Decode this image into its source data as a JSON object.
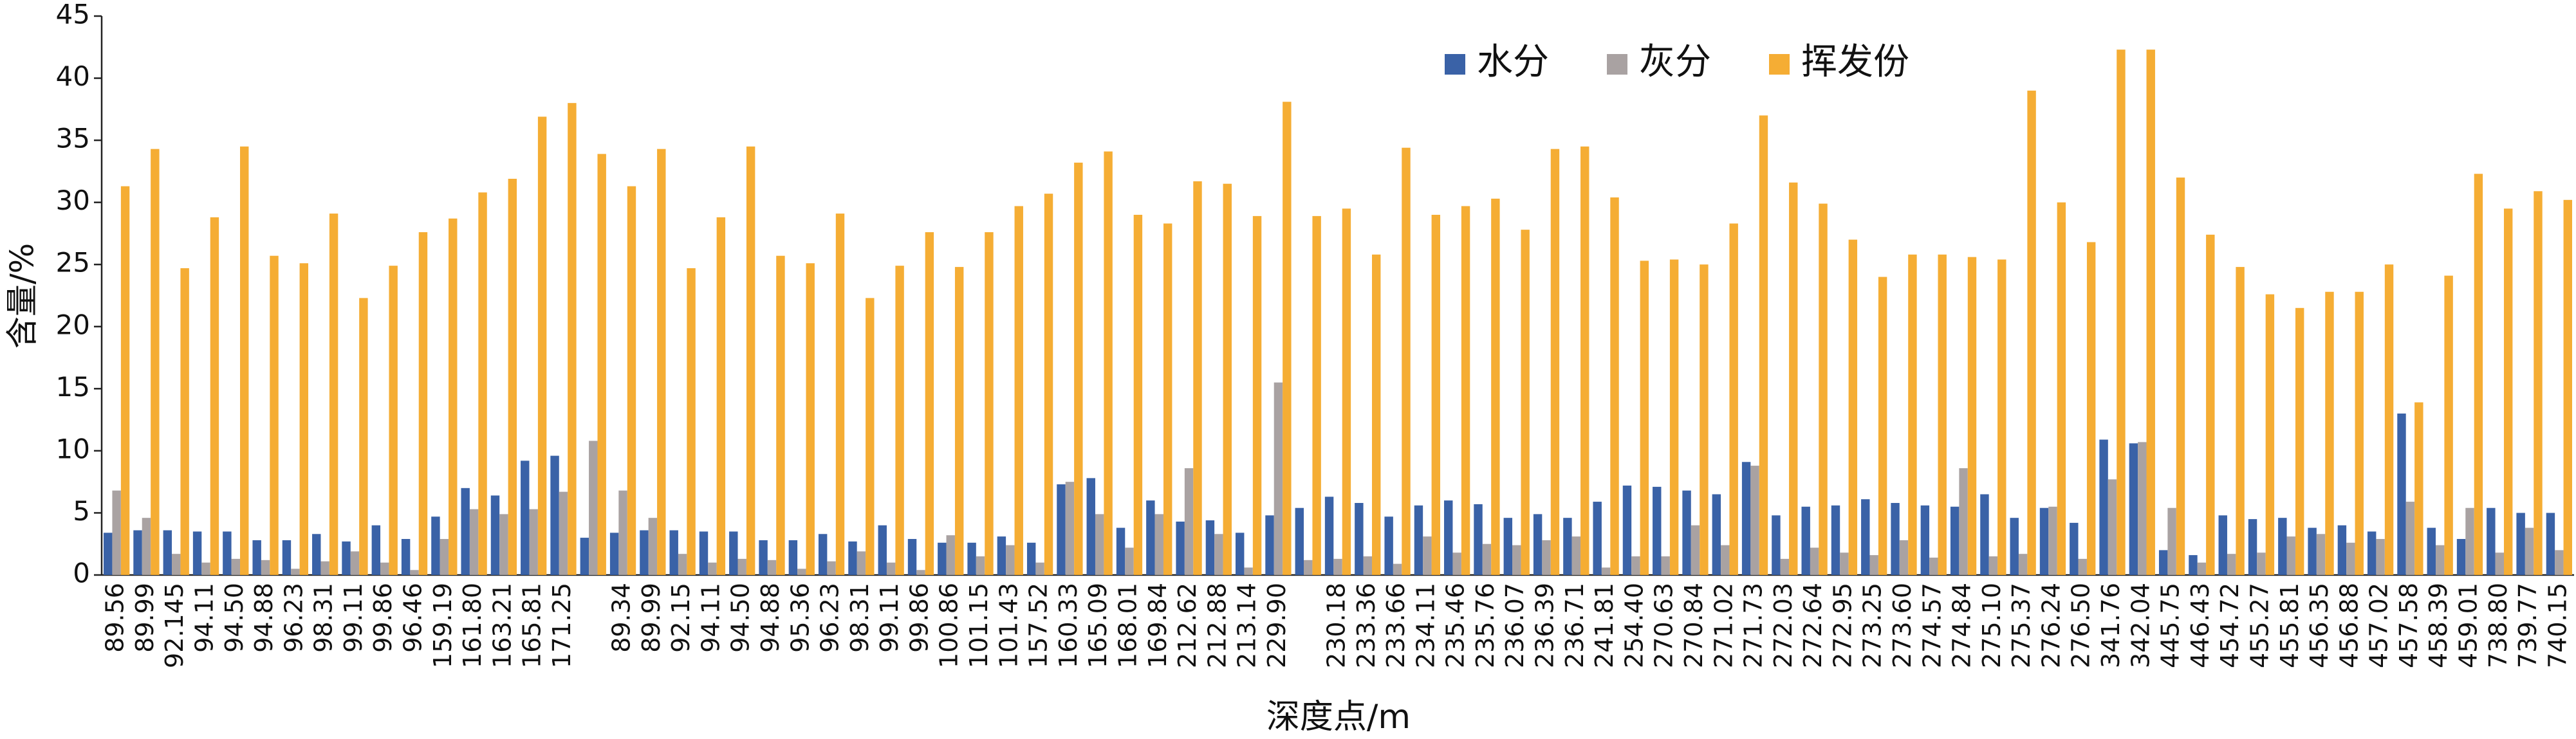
{
  "chart_data": {
    "type": "grouped-bar",
    "x_label": "深度点/m",
    "y_label": "含量/%",
    "categories": [
      "89.56",
      "89.99",
      "92.145",
      "94.11",
      "94.50",
      "94.88",
      "96.23",
      "98.31",
      "99.11",
      "99.86",
      "96.46",
      "159.19",
      "161.80",
      "163.21",
      "165.81",
      "171.25",
      null,
      "89.34",
      "89.99",
      "92.15",
      "94.11",
      "94.50",
      "94.88",
      "95.36",
      "96.23",
      "98.31",
      "99.11",
      "99.86",
      "100.86",
      "101.15",
      "101.43",
      "157.52",
      "160.33",
      "165.09",
      "168.01",
      "169.84",
      "212.62",
      "212.88",
      "213.14",
      "229.90",
      null,
      "230.18",
      "233.36",
      "233.66",
      "234.11",
      "235.46",
      "235.76",
      "236.07",
      "236.39",
      "236.71",
      "241.81",
      "254.40",
      "270.63",
      "270.84",
      "271.02",
      "271.73",
      "272.03",
      "272.64",
      "272.95",
      "273.25",
      "273.60",
      "274.57",
      "274.84",
      "275.10",
      "275.37",
      "276.24",
      "276.50",
      "341.76",
      "342.04",
      "445.75",
      "446.43",
      "454.72",
      "455.27",
      "455.81",
      "456.35",
      "456.88",
      "457.02",
      "457.58",
      "458.39",
      "459.01",
      "738.80",
      "739.77",
      "740.15"
    ],
    "series": [
      {
        "name": "水分",
        "color": "#3a62a7",
        "values": [
          3.4,
          3.6,
          3.6,
          3.5,
          3.5,
          2.8,
          2.8,
          3.3,
          2.7,
          4.0,
          2.9,
          4.7,
          7.0,
          6.4,
          9.2,
          9.6,
          3.0,
          3.4,
          3.6,
          3.6,
          3.5,
          3.5,
          2.8,
          2.8,
          3.3,
          2.7,
          4.0,
          2.9,
          2.6,
          2.6,
          3.1,
          2.6,
          7.3,
          7.8,
          3.8,
          6.0,
          4.3,
          4.4,
          3.4,
          4.8,
          5.4,
          6.3,
          5.8,
          4.7,
          5.6,
          6.0,
          5.7,
          4.6,
          4.9,
          4.6,
          5.9,
          7.2,
          7.1,
          6.8,
          6.5,
          9.1,
          4.8,
          5.5,
          5.6,
          6.1,
          5.8,
          5.6,
          5.5,
          6.5,
          4.6,
          5.4,
          4.2,
          10.9,
          10.6,
          2.0,
          1.6,
          4.8,
          4.5,
          4.6,
          3.8,
          4.0,
          3.5,
          13.0,
          3.8,
          2.9,
          5.4,
          5.0,
          5.0
        ]
      },
      {
        "name": "灰分",
        "color": "#a9a2a2",
        "values": [
          6.8,
          4.6,
          1.7,
          1.0,
          1.3,
          1.2,
          0.5,
          1.1,
          1.9,
          1.0,
          0.4,
          2.9,
          5.3,
          4.9,
          5.3,
          6.7,
          10.8,
          6.8,
          4.6,
          1.7,
          1.0,
          1.3,
          1.2,
          0.5,
          1.1,
          1.9,
          1.0,
          0.4,
          3.2,
          1.5,
          2.4,
          1.0,
          7.5,
          4.9,
          2.2,
          4.9,
          8.6,
          3.3,
          0.6,
          15.5,
          1.2,
          1.3,
          1.5,
          0.9,
          3.1,
          1.8,
          2.5,
          2.4,
          2.8,
          3.1,
          0.6,
          1.5,
          1.5,
          4.0,
          2.4,
          8.8,
          1.3,
          2.2,
          1.8,
          1.6,
          2.8,
          1.4,
          8.6,
          1.5,
          1.7,
          5.5,
          1.3,
          7.7,
          10.7,
          5.4,
          1.0,
          1.7,
          1.8,
          3.1,
          3.3,
          2.6,
          2.9,
          5.9,
          2.4,
          5.4,
          1.8,
          3.8,
          2.0
        ]
      },
      {
        "name": "挥发份",
        "color": "#f5ad34",
        "values": [
          31.3,
          34.3,
          24.7,
          28.8,
          34.5,
          25.7,
          25.1,
          29.1,
          22.3,
          24.9,
          27.6,
          28.7,
          30.8,
          31.9,
          36.9,
          38.0,
          33.9,
          31.3,
          34.3,
          24.7,
          28.8,
          34.5,
          25.7,
          25.1,
          29.1,
          22.3,
          24.9,
          27.6,
          24.8,
          27.6,
          29.7,
          30.7,
          33.2,
          34.1,
          29.0,
          28.3,
          31.7,
          31.5,
          28.9,
          38.1,
          28.9,
          29.5,
          25.8,
          34.4,
          29.0,
          29.7,
          30.3,
          27.8,
          34.3,
          34.5,
          30.4,
          25.3,
          25.4,
          25.0,
          28.3,
          37.0,
          31.6,
          29.9,
          27.0,
          24.0,
          25.8,
          25.8,
          25.6,
          25.4,
          39.0,
          30.0,
          26.8,
          42.3,
          42.3,
          32.0,
          27.4,
          24.8,
          22.6,
          21.5,
          22.8,
          22.8,
          25.0,
          13.9,
          24.1,
          32.3,
          29.5,
          30.9,
          30.2
        ]
      }
    ],
    "ylim": [
      0,
      45
    ],
    "yticks": [
      0,
      5,
      10,
      15,
      20,
      25,
      30,
      35,
      40,
      45
    ],
    "legend": "top",
    "grid": false
  }
}
